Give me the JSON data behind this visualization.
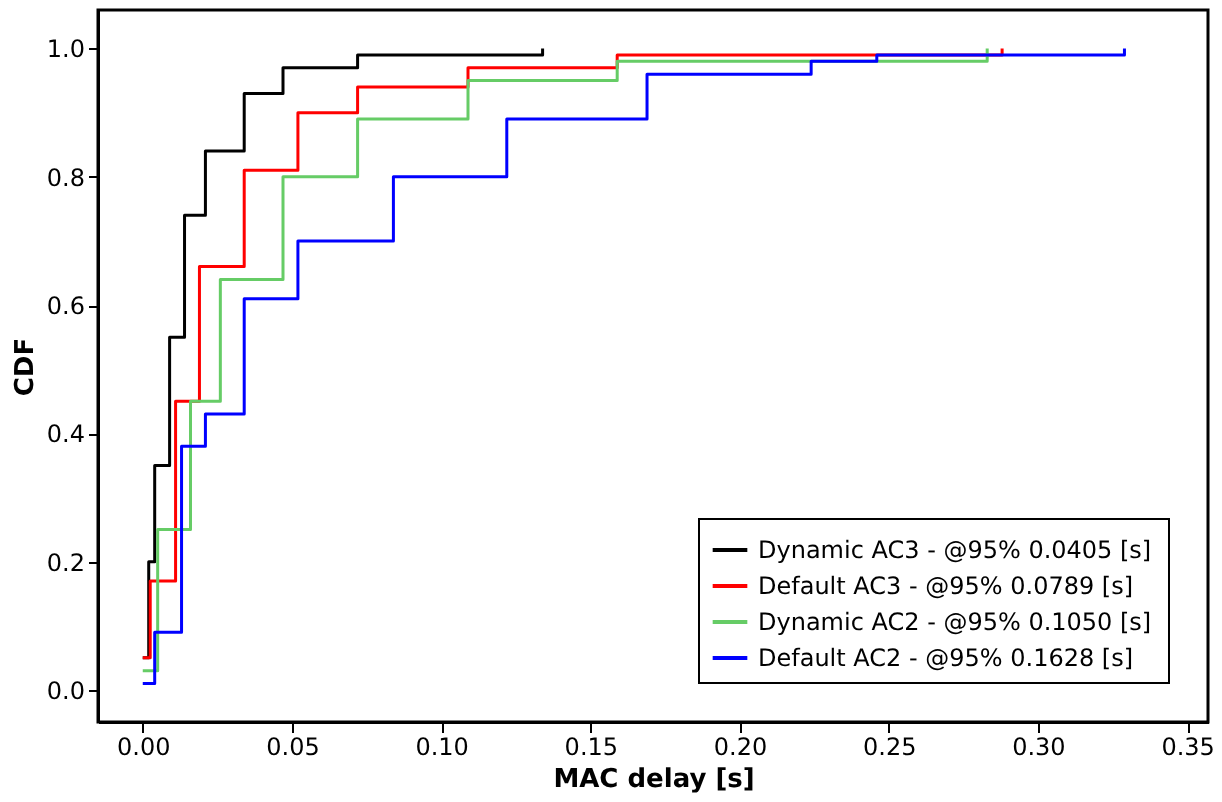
{
  "chart_data": {
    "type": "step",
    "xlabel": "MAC delay [s]",
    "ylabel": "CDF",
    "xlim": [
      -0.015,
      0.357
    ],
    "ylim": [
      -0.05,
      1.06
    ],
    "xticks": [
      {
        "value": 0,
        "label": "0.00"
      },
      {
        "value": 0.05,
        "label": "0.05"
      },
      {
        "value": 0.1,
        "label": "0.10"
      },
      {
        "value": 0.15,
        "label": "0.15"
      },
      {
        "value": 0.2,
        "label": "0.20"
      },
      {
        "value": 0.25,
        "label": "0.25"
      },
      {
        "value": 0.3,
        "label": "0.30"
      },
      {
        "value": 0.35,
        "label": "0.35"
      }
    ],
    "yticks": [
      {
        "value": 0,
        "label": "0.0"
      },
      {
        "value": 0.2,
        "label": "0.2"
      },
      {
        "value": 0.4,
        "label": "0.4"
      },
      {
        "value": 0.6,
        "label": "0.6"
      },
      {
        "value": 0.8,
        "label": "0.8"
      },
      {
        "value": 1,
        "label": "1.0"
      }
    ],
    "grid": false,
    "legend": "bottom right",
    "series": [
      {
        "name": "Dynamic AC3 - @95% 0.0405 [s]",
        "color": "#000000",
        "x": [
          0,
          0.002,
          0.004,
          0.009,
          0.014,
          0.021,
          0.034,
          0.047,
          0.072,
          0.134
        ],
        "values": [
          0.05,
          0.2,
          0.35,
          0.55,
          0.74,
          0.84,
          0.93,
          0.97,
          0.99,
          1.0
        ]
      },
      {
        "name": "Default AC3  -  @95% 0.0789 [s]",
        "color": "#ff0000",
        "x": [
          0,
          0.0025,
          0.011,
          0.019,
          0.034,
          0.052,
          0.072,
          0.109,
          0.159,
          0.288
        ],
        "values": [
          0.05,
          0.17,
          0.45,
          0.66,
          0.81,
          0.9,
          0.94,
          0.97,
          0.99,
          1.0
        ]
      },
      {
        "name": "Dynamic AC2 - @95% 0.1050 [s]",
        "color": "#66cc66",
        "x": [
          0,
          0.005,
          0.016,
          0.026,
          0.047,
          0.072,
          0.109,
          0.159,
          0.283
        ],
        "values": [
          0.03,
          0.25,
          0.45,
          0.64,
          0.8,
          0.89,
          0.95,
          0.98,
          1.0
        ]
      },
      {
        "name": "Default AC2    - @95% 0.1628 [s]",
        "color": "#0000ff",
        "x": [
          0,
          0.004,
          0.013,
          0.021,
          0.034,
          0.052,
          0.084,
          0.122,
          0.169,
          0.224,
          0.246,
          0.329
        ],
        "values": [
          0.01,
          0.09,
          0.38,
          0.43,
          0.61,
          0.7,
          0.8,
          0.89,
          0.96,
          0.98,
          0.99,
          1.0
        ]
      }
    ]
  }
}
